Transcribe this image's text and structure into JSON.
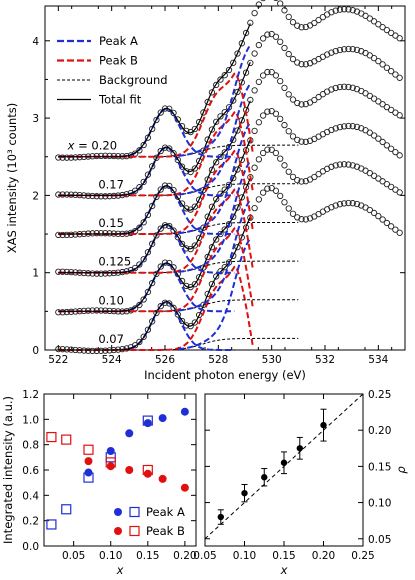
{
  "chart_data": [
    {
      "type": "line",
      "xlabel": "Incident photon energy (eV)",
      "ylabel": "XAS intensity (10³ counts)",
      "xlim": [
        521.5,
        535
      ],
      "ylim": [
        0,
        4.45
      ],
      "x_ticks": [
        "522",
        "524",
        "526",
        "528",
        "530",
        "532",
        "534"
      ],
      "y_ticks": [
        "0",
        "1",
        "2",
        "3",
        "4"
      ],
      "legend_position": "upper-left",
      "legend": [
        {
          "label": "Peak A",
          "color": "#1f2fd6",
          "style": "dashed-thick"
        },
        {
          "label": "Peak B",
          "color": "#e01010",
          "style": "dashed-thick"
        },
        {
          "label": "Background",
          "color": "#000000",
          "style": "dashed"
        },
        {
          "label": "Total fit",
          "color": "#000000",
          "style": "solid"
        }
      ],
      "spectrum_offsets": [
        0,
        0.5,
        1,
        1.5,
        2,
        2.5
      ],
      "spectra_labels": [
        {
          "x_value": "0.20",
          "prefix": "x =",
          "offset": 2.5
        },
        {
          "x_value": "0.17",
          "offset": 2.0
        },
        {
          "x_value": "0.15",
          "offset": 1.5
        },
        {
          "x_value": "0.125",
          "offset": 1.0
        },
        {
          "x_value": "0.10",
          "offset": 0.5
        },
        {
          "x_value": "0.07",
          "offset": 0.0
        }
      ]
    },
    {
      "type": "scatter",
      "xlabel": "x",
      "ylabel": "Integrated intensity (a.u.)",
      "xlim": [
        0.01,
        0.215
      ],
      "ylim": [
        0,
        1.2
      ],
      "x_ticks": [
        "0.05",
        "0.10",
        "0.15",
        "0.20"
      ],
      "y_ticks": [
        "0.0",
        "0.2",
        "0.4",
        "0.6",
        "0.8",
        "1.0",
        "1.2"
      ],
      "legend_position": "lower-right",
      "series": [
        {
          "name": "Peak A",
          "color": "#1f2fd6",
          "filled": [
            [
              0.07,
              0.58
            ],
            [
              0.1,
              0.75
            ],
            [
              0.125,
              0.89
            ],
            [
              0.15,
              0.97
            ],
            [
              0.17,
              1.01
            ],
            [
              0.2,
              1.06
            ]
          ],
          "open": [
            [
              0.02,
              0.17
            ],
            [
              0.04,
              0.29
            ],
            [
              0.07,
              0.54
            ],
            [
              0.1,
              0.7
            ],
            [
              0.15,
              0.99
            ]
          ]
        },
        {
          "name": "Peak B",
          "color": "#e01010",
          "filled": [
            [
              0.07,
              0.67
            ],
            [
              0.1,
              0.63
            ],
            [
              0.125,
              0.6
            ],
            [
              0.15,
              0.57
            ],
            [
              0.17,
              0.53
            ],
            [
              0.2,
              0.46
            ]
          ],
          "open": [
            [
              0.02,
              0.86
            ],
            [
              0.04,
              0.84
            ],
            [
              0.07,
              0.76
            ],
            [
              0.1,
              0.66
            ],
            [
              0.15,
              0.6
            ]
          ]
        }
      ]
    },
    {
      "type": "scatter",
      "xlabel": "x",
      "ylabel": "ρ",
      "xlim": [
        0.05,
        0.25
      ],
      "ylim": [
        0.04,
        0.25
      ],
      "x_ticks": [
        "0.05",
        "0.10",
        "0.15",
        "0.20",
        "0.25"
      ],
      "y_ticks": [
        "0.05",
        "0.10",
        "0.15",
        "0.20",
        "0.25"
      ],
      "points": [
        [
          0.07,
          0.08
        ],
        [
          0.1,
          0.113
        ],
        [
          0.125,
          0.135
        ],
        [
          0.15,
          0.155
        ],
        [
          0.17,
          0.175
        ],
        [
          0.2,
          0.207
        ]
      ],
      "errors": [
        0.01,
        0.012,
        0.012,
        0.015,
        0.015,
        0.022
      ],
      "reference_line": {
        "style": "dashed",
        "from": [
          0.05,
          0.05
        ],
        "to": [
          0.25,
          0.25
        ]
      }
    }
  ]
}
